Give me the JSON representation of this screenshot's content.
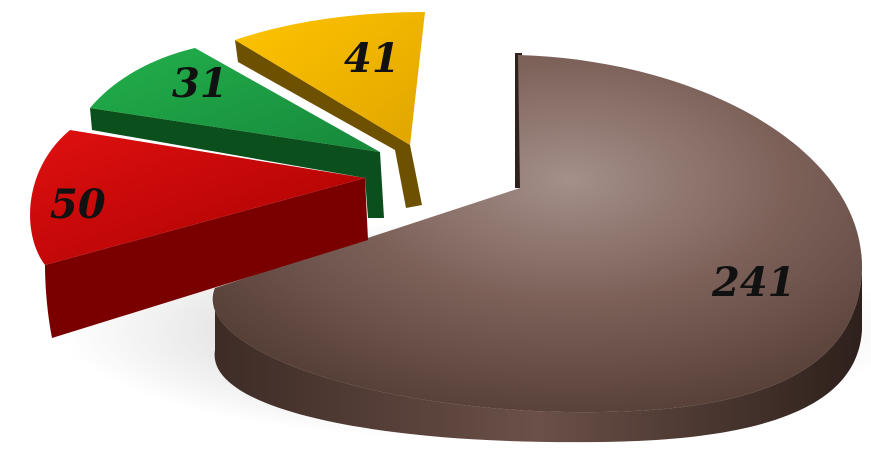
{
  "chart_data": {
    "type": "pie",
    "style": "3d-exploded",
    "title": "",
    "legend": "none",
    "slices": [
      {
        "value": 241,
        "label": "241",
        "color": "#6b5048"
      },
      {
        "value": 50,
        "label": "50",
        "color": "#c00000"
      },
      {
        "value": 31,
        "label": "31",
        "color": "#1fa046"
      },
      {
        "value": 41,
        "label": "41",
        "color": "#f2b800"
      }
    ]
  }
}
